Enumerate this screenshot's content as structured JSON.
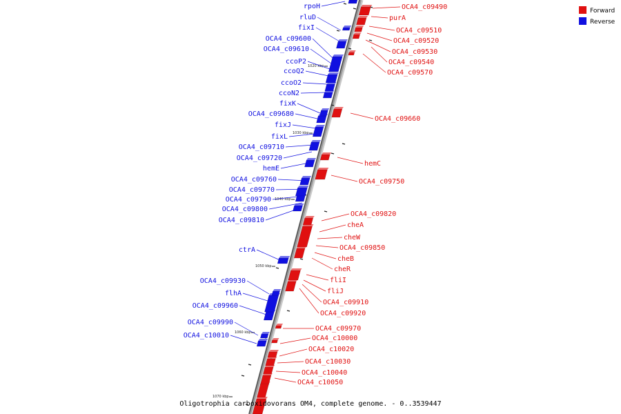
{
  "colors": {
    "forward": "#e01010",
    "reverse": "#1010e0",
    "axis": "#999999",
    "axis_dark": "#444444"
  },
  "legend": {
    "forward_label": "Forward",
    "reverse_label": "Reverse"
  },
  "caption": "Oligotrophia carboxidovorans OM4, complete genome. - 0..3539447",
  "ruler": [
    "1020 kbp",
    "1030 kbp",
    "1040 kbp",
    "1050 kbp",
    "1060 kbp",
    "1070 kbp"
  ],
  "forward_labels": [
    "OCA4_c09490",
    "purA",
    "OCA4_c09510",
    "OCA4_c09520",
    "OCA4_c09530",
    "OCA4_c09540",
    "OCA4_c09570",
    "OCA4_c09660",
    "hemC",
    "OCA4_c09750",
    "OCA4_c09820",
    "cheA",
    "cheW",
    "OCA4_c09850",
    "cheB",
    "cheR",
    "fliI",
    "fliJ",
    "OCA4_c09910",
    "OCA4_c09920",
    "OCA4_c09970",
    "OCA4_c10000",
    "OCA4_c10020",
    "OCA4_c10030",
    "OCA4_c10040",
    "OCA4_c10050"
  ],
  "reverse_labels": [
    "rpoH",
    "rluD",
    "fixI",
    "OCA4_c09600",
    "OCA4_c09610",
    "ccoP2",
    "ccoQ2",
    "ccoO2",
    "ccoN2",
    "fixK",
    "OCA4_c09680",
    "fixJ",
    "fixL",
    "OCA4_c09710",
    "OCA4_c09720",
    "hemE",
    "OCA4_c09760",
    "OCA4_c09770",
    "OCA4_c09790",
    "OCA4_c09800",
    "OCA4_c09810",
    "ctrA",
    "OCA4_c09930",
    "flhA",
    "OCA4_c09960",
    "OCA4_c09990",
    "OCA4_c10010"
  ]
}
